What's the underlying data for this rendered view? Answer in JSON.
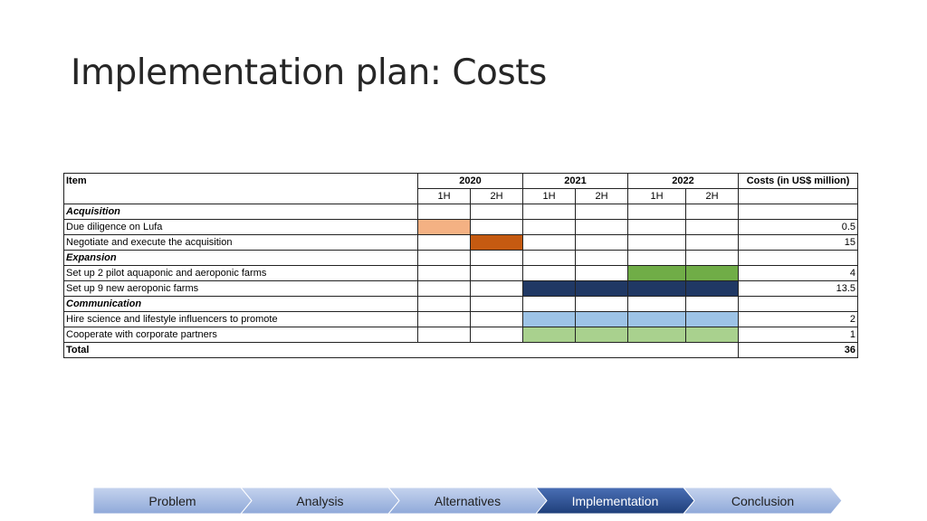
{
  "title": "Implementation plan: Costs",
  "table": {
    "header_item": "Item",
    "years": [
      "2020",
      "2021",
      "2022"
    ],
    "halves": [
      "1H",
      "2H",
      "1H",
      "2H",
      "1H",
      "2H"
    ],
    "header_cost": "Costs (in US$ million)",
    "rows": [
      {
        "type": "section",
        "label": "Acquisition",
        "cells": [
          "",
          "",
          "",
          "",
          "",
          ""
        ],
        "cost": ""
      },
      {
        "type": "item",
        "label": "Due diligence on Lufa",
        "cells": [
          "#f4b183",
          "",
          "",
          "",
          "",
          ""
        ],
        "cost": "0.5"
      },
      {
        "type": "item",
        "label": "Negotiate and execute the acquisition",
        "cells": [
          "",
          "#c55a11",
          "",
          "",
          "",
          ""
        ],
        "cost": "15"
      },
      {
        "type": "section",
        "label": "Expansion",
        "cells": [
          "",
          "",
          "",
          "",
          "",
          ""
        ],
        "cost": ""
      },
      {
        "type": "item",
        "label": "Set up 2 pilot aquaponic and aeroponic farms",
        "cells": [
          "",
          "",
          "",
          "",
          "#70ad47",
          "#70ad47"
        ],
        "cost": "4"
      },
      {
        "type": "item",
        "label": "Set up 9 new aeroponic farms",
        "cells": [
          "",
          "",
          "#203864",
          "#203864",
          "#203864",
          "#203864"
        ],
        "cost": "13.5"
      },
      {
        "type": "section",
        "label": "Communication",
        "cells": [
          "",
          "",
          "",
          "",
          "",
          ""
        ],
        "cost": ""
      },
      {
        "type": "item",
        "label": "Hire science and lifestyle influencers to promote",
        "cells": [
          "",
          "",
          "#9dc3e6",
          "#9dc3e6",
          "#9dc3e6",
          "#9dc3e6"
        ],
        "cost": "2"
      },
      {
        "type": "item",
        "label": "Cooperate with corporate partners",
        "cells": [
          "",
          "",
          "#a9d18e",
          "#a9d18e",
          "#a9d18e",
          "#a9d18e"
        ],
        "cost": "1"
      }
    ],
    "total_label": "Total",
    "total_cost": "36"
  },
  "nav": {
    "steps": [
      "Problem",
      "Analysis",
      "Alternatives",
      "Implementation",
      "Conclusion"
    ],
    "active_index": 3,
    "colors": {
      "inactive_top": "#c5d3ee",
      "inactive_bottom": "#8fa9d9",
      "active_top": "#4a6fb5",
      "active_bottom": "#1f3f7a"
    }
  }
}
